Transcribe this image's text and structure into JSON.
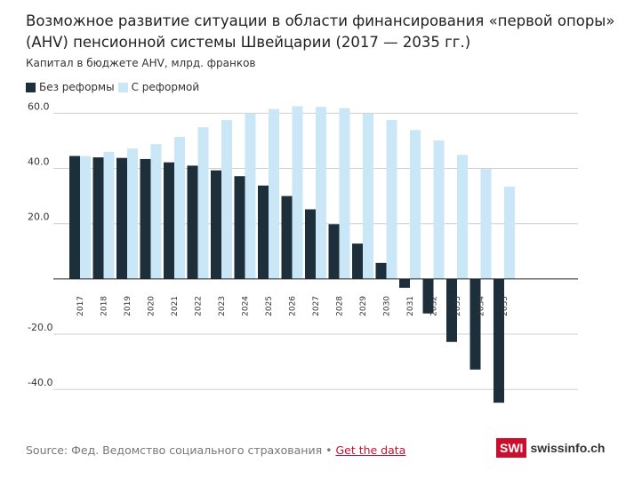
{
  "header": {
    "title": "Возможное развитие ситуации в области финансирования «первой опоры» (AHV) пенсионной системы Швейцарии (2017 — 2035 гг.)",
    "subtitle": "Капитал в бюджете AHV, млрд. франков"
  },
  "legend": {
    "items": [
      {
        "label": "Без реформы",
        "color": "#1e2f3c"
      },
      {
        "label": "С реформой",
        "color": "#c9e7f7"
      }
    ]
  },
  "footer": {
    "source_text": "Source: Фед. Ведомство социального страхования •",
    "link_label": "Get the data"
  },
  "brand": {
    "box_text": "SWI",
    "name": "swissinfo.ch",
    "color": "#c8102e"
  },
  "chart_data": {
    "type": "bar",
    "categories": [
      "2017",
      "2018",
      "2019",
      "2020",
      "2021",
      "2022",
      "2023",
      "2024",
      "2025",
      "2026",
      "2027",
      "2028",
      "2029",
      "2030",
      "2031",
      "2032",
      "2033",
      "2034",
      "2035"
    ],
    "series": [
      {
        "name": "Без реформы",
        "color": "#1e2f3c",
        "values": [
          44.5,
          44.0,
          43.8,
          43.4,
          42.2,
          41.0,
          39.3,
          37.2,
          33.8,
          30.0,
          25.2,
          19.8,
          12.8,
          5.8,
          -3.2,
          -12.5,
          -22.8,
          -32.8,
          -44.8
        ]
      },
      {
        "name": "С реформой",
        "color": "#c9e7f7",
        "values": [
          44.5,
          46.0,
          47.2,
          48.8,
          51.4,
          54.9,
          57.5,
          59.8,
          61.5,
          62.5,
          62.3,
          61.8,
          59.8,
          57.5,
          53.9,
          50.1,
          44.9,
          39.8,
          33.4
        ]
      }
    ],
    "y_ticks": [
      "60.0",
      "40.0",
      "20.0",
      "-20.0",
      "-40.0"
    ],
    "y_tick_values": [
      60,
      40,
      20,
      -20,
      -40
    ],
    "ylim": [
      -47,
      63
    ],
    "grid": true
  }
}
